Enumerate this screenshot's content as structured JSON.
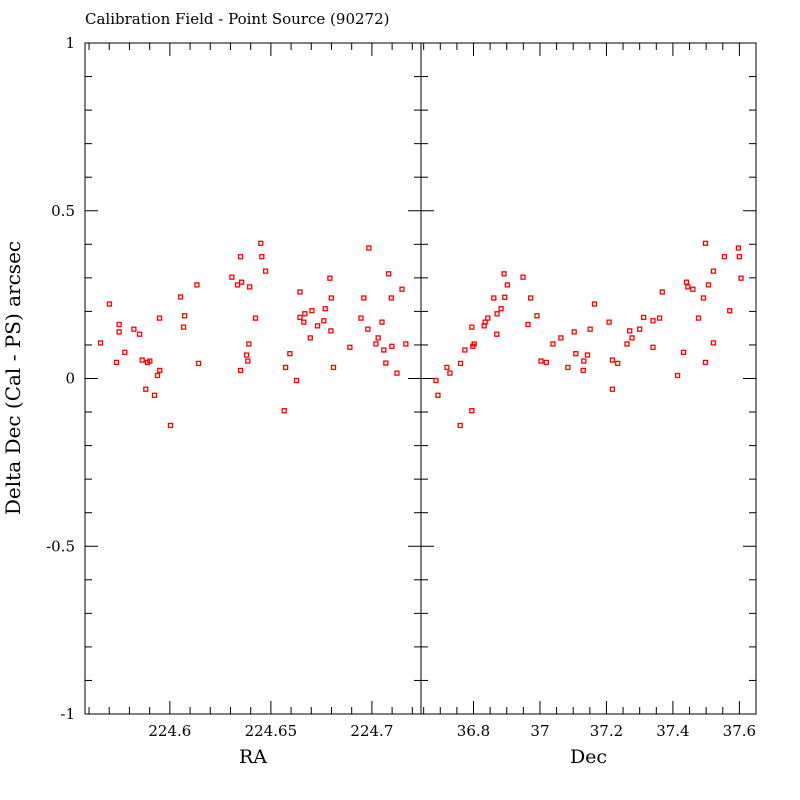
{
  "chart_data": {
    "type": "scatter",
    "title": "Calibration Field - Point Source (90272)",
    "ylabel": "Delta Dec (Cal - PS) arcsec",
    "ylim": [
      -1,
      1
    ],
    "yticks": [
      "-1",
      "-0.5",
      "0",
      "0.5",
      "1"
    ],
    "ytick_values": [
      -1,
      -0.5,
      0,
      0.5,
      1
    ],
    "grid": false,
    "marker_color": "#ff0000",
    "panels": [
      {
        "xlabel": "RA",
        "xlim": [
          224.558,
          224.7243
        ],
        "xticks": [
          "224.6",
          "224.65",
          "224.7"
        ],
        "xtick_values": [
          224.6,
          224.65,
          224.7
        ],
        "minor_step": 0.01,
        "x": [
          224.5657,
          224.5701,
          224.5736,
          224.5749,
          224.5749,
          224.5777,
          224.5822,
          224.585,
          224.5863,
          224.5889,
          224.5901,
          224.5881,
          224.5924,
          224.5939,
          224.595,
          224.5949,
          224.6003,
          224.6053,
          224.6068,
          224.6073,
          224.6134,
          224.6142,
          224.6307,
          224.6335,
          224.635,
          224.6355,
          224.635,
          224.638,
          224.6386,
          224.6391,
          224.6395,
          224.6424,
          224.645,
          224.6455,
          224.6474,
          224.6566,
          224.6573,
          224.6594,
          224.6627,
          224.6644,
          224.6644,
          224.6663,
          224.6668,
          224.6695,
          224.6703,
          224.6731,
          224.6762,
          224.6769,
          224.6792,
          224.6797,
          224.6799,
          224.681,
          224.6891,
          224.6946,
          224.696,
          224.698,
          224.6985,
          224.702,
          224.7031,
          224.705,
          224.7059,
          224.7069,
          224.7083,
          224.7096,
          224.7099,
          224.7124,
          224.7149,
          224.7168
        ],
        "y": [
          0.106,
          0.222,
          0.048,
          0.161,
          0.139,
          0.078,
          0.147,
          0.132,
          0.055,
          0.048,
          0.052,
          -0.032,
          -0.05,
          0.009,
          0.024,
          0.18,
          -0.14,
          0.243,
          0.153,
          0.187,
          0.279,
          0.045,
          0.302,
          0.279,
          0.363,
          0.287,
          0.024,
          0.07,
          0.052,
          0.103,
          0.273,
          0.18,
          0.403,
          0.363,
          0.32,
          -0.096,
          0.033,
          0.074,
          -0.006,
          0.258,
          0.182,
          0.168,
          0.193,
          0.121,
          0.202,
          0.157,
          0.172,
          0.208,
          0.299,
          0.142,
          0.24,
          0.033,
          0.093,
          0.18,
          0.24,
          0.147,
          0.389,
          0.103,
          0.121,
          0.168,
          0.085,
          0.046,
          0.312,
          0.24,
          0.096,
          0.016,
          0.266,
          0.103
        ]
      },
      {
        "xlabel": "Dec",
        "xlim": [
          36.642,
          37.65
        ],
        "xticks": [
          "36.8",
          "37",
          "37.2",
          "37.4",
          "37.6"
        ],
        "xtick_values": [
          36.8,
          37.0,
          37.2,
          37.4,
          37.6
        ],
        "minor_step": 0.05,
        "x": [
          36.687,
          36.693,
          36.72,
          36.729,
          36.761,
          36.76,
          36.774,
          36.795,
          36.795,
          36.798,
          36.802,
          36.832,
          36.835,
          36.843,
          36.861,
          36.87,
          36.871,
          36.883,
          36.892,
          36.894,
          36.902,
          36.949,
          36.964,
          36.972,
          36.991,
          37.003,
          37.019,
          37.039,
          37.063,
          37.084,
          37.103,
          37.108,
          37.13,
          37.132,
          37.143,
          37.151,
          37.164,
          37.208,
          37.218,
          37.218,
          37.234,
          37.262,
          37.27,
          37.277,
          37.3,
          37.312,
          37.34,
          37.34,
          37.36,
          37.368,
          37.414,
          37.432,
          37.441,
          37.445,
          37.46,
          37.477,
          37.492,
          37.498,
          37.498,
          37.507,
          37.522,
          37.522,
          37.555,
          37.571,
          37.597,
          37.6,
          37.605
        ],
        "y": [
          -0.006,
          -0.05,
          0.033,
          0.016,
          0.045,
          -0.14,
          0.085,
          0.153,
          -0.096,
          0.096,
          0.103,
          0.157,
          0.168,
          0.18,
          0.24,
          0.132,
          0.193,
          0.208,
          0.312,
          0.242,
          0.279,
          0.302,
          0.161,
          0.24,
          0.187,
          0.052,
          0.048,
          0.103,
          0.121,
          0.033,
          0.139,
          0.074,
          0.024,
          0.052,
          0.07,
          0.147,
          0.222,
          0.168,
          -0.032,
          0.055,
          0.045,
          0.103,
          0.142,
          0.121,
          0.147,
          0.182,
          0.093,
          0.172,
          0.18,
          0.258,
          0.009,
          0.078,
          0.287,
          0.273,
          0.266,
          0.18,
          0.24,
          0.403,
          0.048,
          0.279,
          0.32,
          0.106,
          0.363,
          0.202,
          0.389,
          0.363,
          0.299
        ]
      }
    ]
  }
}
